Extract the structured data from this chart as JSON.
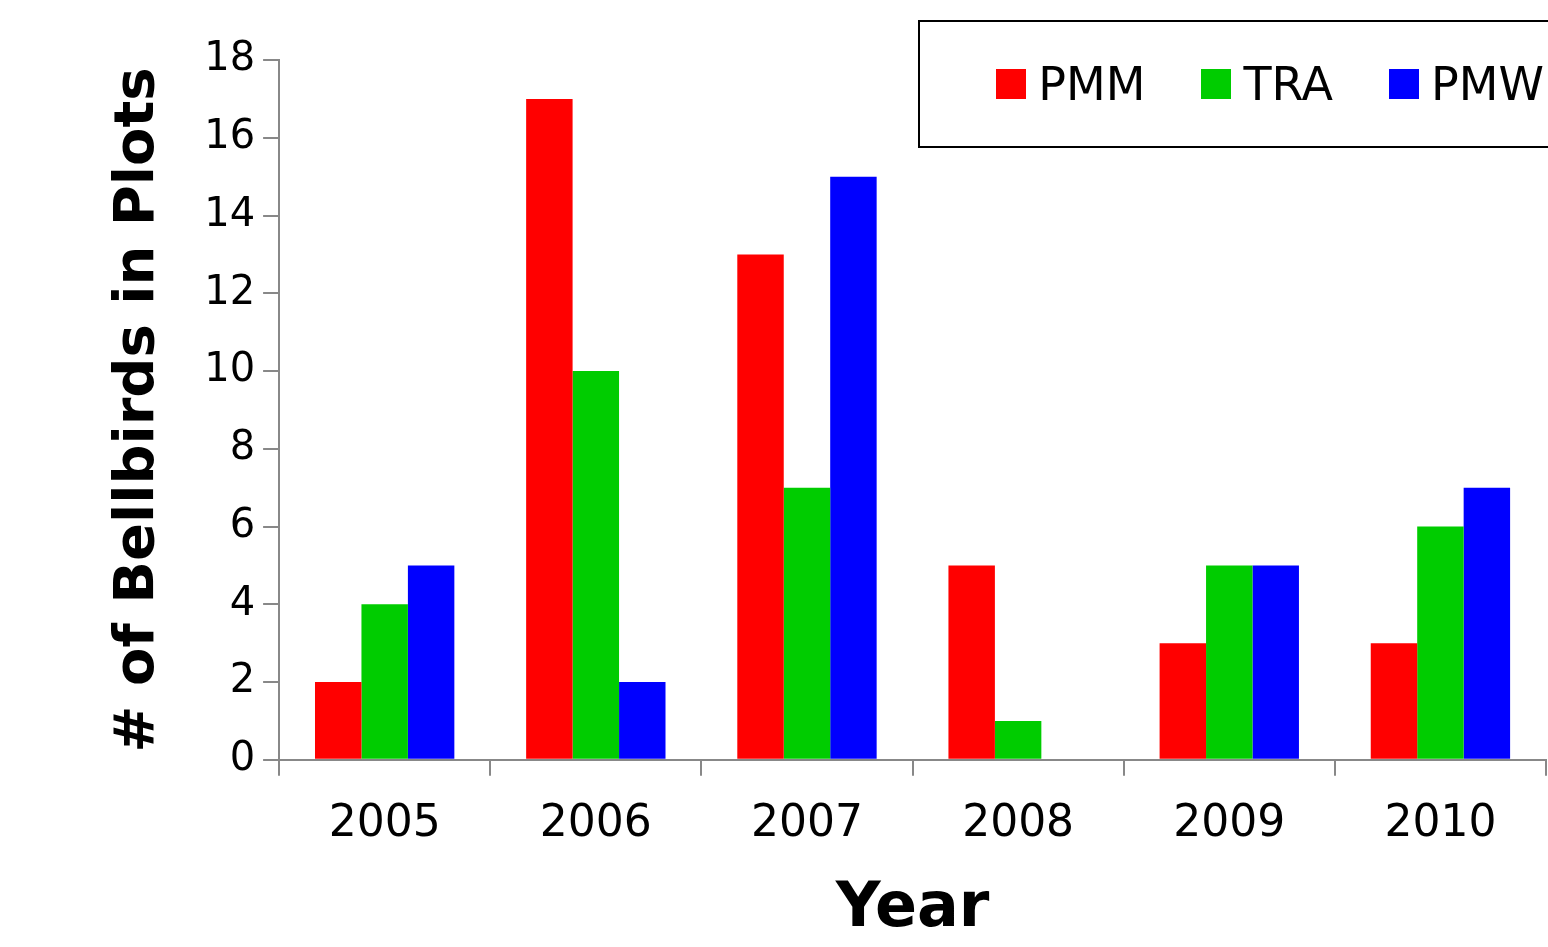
{
  "chart_data": {
    "type": "bar",
    "xlabel": "Year",
    "ylabel": "# of Bellbirds in Plots",
    "categories": [
      "2005",
      "2006",
      "2007",
      "2008",
      "2009",
      "2010"
    ],
    "series": [
      {
        "name": "PMM",
        "color": "#ff0000",
        "values": [
          2,
          17,
          13,
          5,
          3,
          3
        ]
      },
      {
        "name": "TRA",
        "color": "#00cc00",
        "values": [
          4,
          10,
          7,
          1,
          5,
          6
        ]
      },
      {
        "name": "PMW",
        "color": "#0000ff",
        "values": [
          5,
          2,
          15,
          0,
          5,
          7
        ]
      }
    ],
    "ylim": [
      0,
      18
    ],
    "yticks": [
      0,
      2,
      4,
      6,
      8,
      10,
      12,
      14,
      16,
      18
    ],
    "grid": false,
    "legend": "top right"
  }
}
